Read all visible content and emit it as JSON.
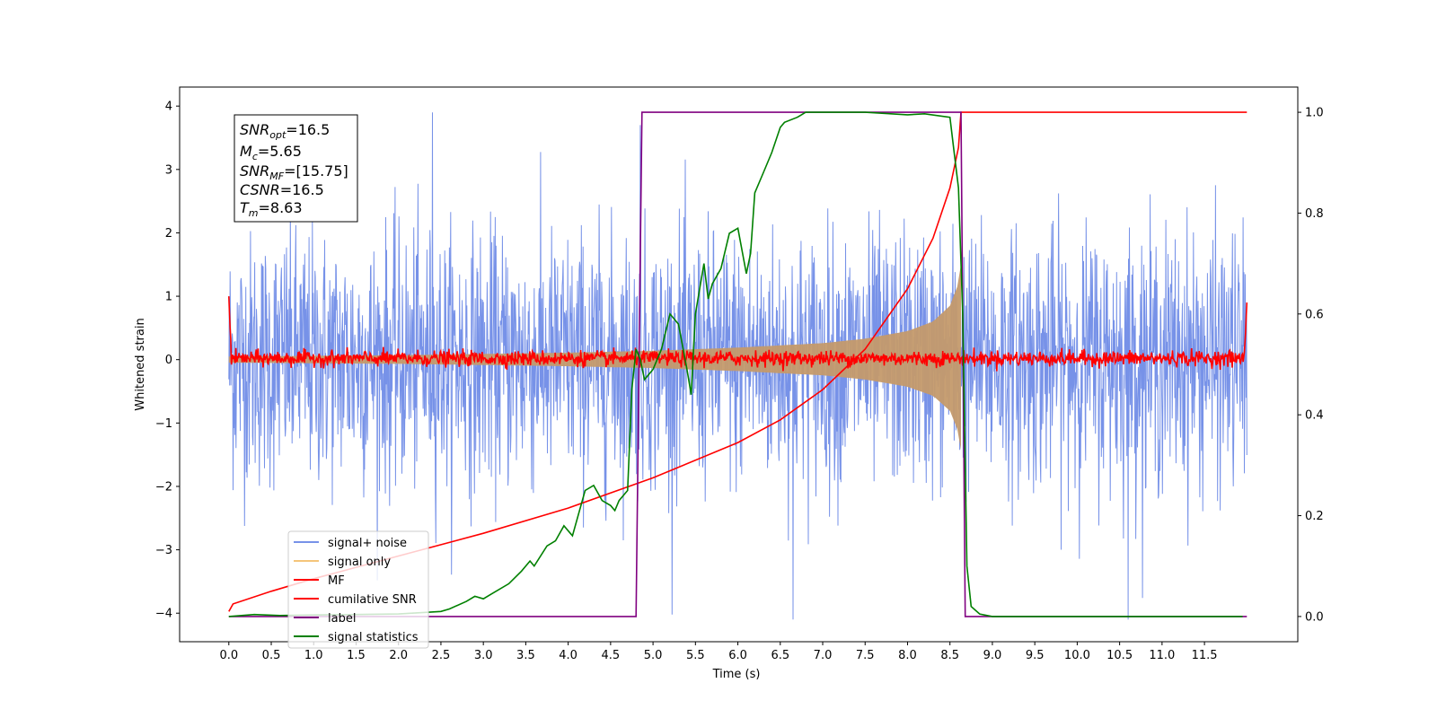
{
  "chart_data": {
    "type": "line",
    "xlabel": "Time (s)",
    "ylabel": "Whitened strain",
    "xlim": [
      -0.58,
      12.6
    ],
    "ylim_left": [
      -4.45,
      4.3
    ],
    "ylim_right": [
      -0.05,
      1.05
    ],
    "x_ticks": [
      "0.0",
      "0.5",
      "1.0",
      "1.5",
      "2.0",
      "2.5",
      "3.0",
      "3.5",
      "4.0",
      "4.5",
      "5.0",
      "5.5",
      "6.0",
      "6.5",
      "7.0",
      "7.5",
      "8.0",
      "8.5",
      "9.0",
      "9.5",
      "10.0",
      "10.5",
      "11.0",
      "11.5"
    ],
    "y_ticks_left": [
      "4",
      "3",
      "2",
      "1",
      "0",
      "−1",
      "−2",
      "−3",
      "−4"
    ],
    "y_ticks_right": [
      "1.0",
      "0.8",
      "0.6",
      "0.4",
      "0.2",
      "0.0"
    ],
    "annotation": {
      "lines": [
        {
          "base": "SNR",
          "sub": "opt",
          "rest": "=16.5"
        },
        {
          "base": "M",
          "sub": "c",
          "rest": "=5.65"
        },
        {
          "base": "SNR",
          "sub": "MF",
          "rest": "=[15.75]"
        },
        {
          "base": "CSNR",
          "sub": "",
          "rest": "=16.5"
        },
        {
          "base": "T",
          "sub": "m",
          "rest": "=8.63"
        }
      ]
    },
    "legend": {
      "placement": "lower-left",
      "entries": [
        {
          "label": "signal+ noise",
          "color": "#7792e8"
        },
        {
          "label": "signal only",
          "color": "#f5c57a"
        },
        {
          "label": "MF",
          "color": "#ff0000"
        },
        {
          "label": "cumilative SNR",
          "color": "#ff0000"
        },
        {
          "label": "label",
          "color": "#800080"
        },
        {
          "label": "signal statistics",
          "color": "#008000"
        }
      ]
    },
    "series": [
      {
        "name": "signal+ noise",
        "axis": "left",
        "color": "#7792e8",
        "kind": "noise",
        "x_range": [
          0.0,
          12.0
        ],
        "mean": 0.0,
        "std": 1.0,
        "note_peaks": [
          {
            "x": 2.4,
            "y": 3.9
          },
          {
            "x": 4.85,
            "y": 3.7
          },
          {
            "x": 10.6,
            "y": -4.1
          },
          {
            "x": 6.65,
            "y": -4.1
          }
        ]
      },
      {
        "name": "signal only",
        "axis": "left",
        "color": "#c49a6c",
        "kind": "chirp_envelope",
        "x_range": [
          0.0,
          8.63
        ],
        "envelope": [
          [
            0.0,
            0.05
          ],
          [
            2.0,
            0.07
          ],
          [
            4.0,
            0.11
          ],
          [
            5.0,
            0.14
          ],
          [
            6.0,
            0.19
          ],
          [
            7.0,
            0.26
          ],
          [
            7.5,
            0.33
          ],
          [
            8.0,
            0.45
          ],
          [
            8.3,
            0.6
          ],
          [
            8.5,
            0.85
          ],
          [
            8.6,
            1.2
          ],
          [
            8.63,
            1.5
          ]
        ]
      },
      {
        "name": "MF",
        "axis": "left",
        "color": "#ff0000",
        "kind": "noise",
        "x_range": [
          0.0,
          12.0
        ],
        "mean": 0.02,
        "std": 0.06,
        "edges": [
          {
            "x": 0.0,
            "y": 1.0
          },
          {
            "x": 12.0,
            "y": 0.9
          }
        ]
      },
      {
        "name": "cumilative SNR",
        "axis": "right",
        "color": "#ff0000",
        "x": [
          0.0,
          0.05,
          0.5,
          1.0,
          2.0,
          3.0,
          4.0,
          5.0,
          6.0,
          6.5,
          7.0,
          7.5,
          8.0,
          8.3,
          8.5,
          8.6,
          8.63,
          12.0
        ],
        "y": [
          0.01,
          0.025,
          0.05,
          0.075,
          0.12,
          0.165,
          0.215,
          0.275,
          0.345,
          0.39,
          0.45,
          0.53,
          0.65,
          0.75,
          0.85,
          0.93,
          1.0,
          1.0
        ]
      },
      {
        "name": "label",
        "axis": "right",
        "color": "#800080",
        "x": [
          0.0,
          4.8,
          4.87,
          8.63,
          8.68,
          12.0
        ],
        "y": [
          0.0,
          0.0,
          1.0,
          1.0,
          0.0,
          0.0
        ]
      },
      {
        "name": "signal statistics",
        "axis": "right",
        "color": "#008000",
        "x": [
          0.0,
          0.3,
          0.6,
          1.0,
          1.5,
          2.0,
          2.3,
          2.5,
          2.6,
          2.8,
          2.9,
          3.0,
          3.1,
          3.3,
          3.45,
          3.55,
          3.6,
          3.75,
          3.85,
          3.95,
          4.05,
          4.2,
          4.3,
          4.4,
          4.5,
          4.55,
          4.6,
          4.7,
          4.75,
          4.8,
          4.85,
          4.9,
          4.95,
          5.0,
          5.1,
          5.2,
          5.3,
          5.4,
          5.45,
          5.5,
          5.6,
          5.65,
          5.7,
          5.8,
          5.9,
          6.0,
          6.1,
          6.15,
          6.2,
          6.3,
          6.4,
          6.5,
          6.55,
          6.7,
          6.8,
          7.0,
          7.5,
          8.0,
          8.2,
          8.5,
          8.55,
          8.6,
          8.65,
          8.7,
          8.75,
          8.85,
          9.0,
          10.0,
          11.0,
          11.95
        ],
        "y": [
          0.0,
          0.004,
          0.002,
          0.003,
          0.004,
          0.005,
          0.008,
          0.01,
          0.015,
          0.03,
          0.04,
          0.035,
          0.045,
          0.065,
          0.09,
          0.11,
          0.1,
          0.14,
          0.15,
          0.18,
          0.16,
          0.25,
          0.26,
          0.23,
          0.22,
          0.21,
          0.23,
          0.25,
          0.45,
          0.53,
          0.51,
          0.47,
          0.48,
          0.49,
          0.53,
          0.6,
          0.58,
          0.49,
          0.44,
          0.6,
          0.7,
          0.63,
          0.66,
          0.69,
          0.76,
          0.77,
          0.68,
          0.72,
          0.84,
          0.88,
          0.92,
          0.97,
          0.98,
          0.99,
          1.0,
          1.0,
          1.0,
          0.995,
          0.997,
          0.99,
          0.92,
          0.85,
          0.6,
          0.1,
          0.02,
          0.005,
          0.0,
          0.0,
          0.0,
          0.0
        ]
      }
    ]
  }
}
